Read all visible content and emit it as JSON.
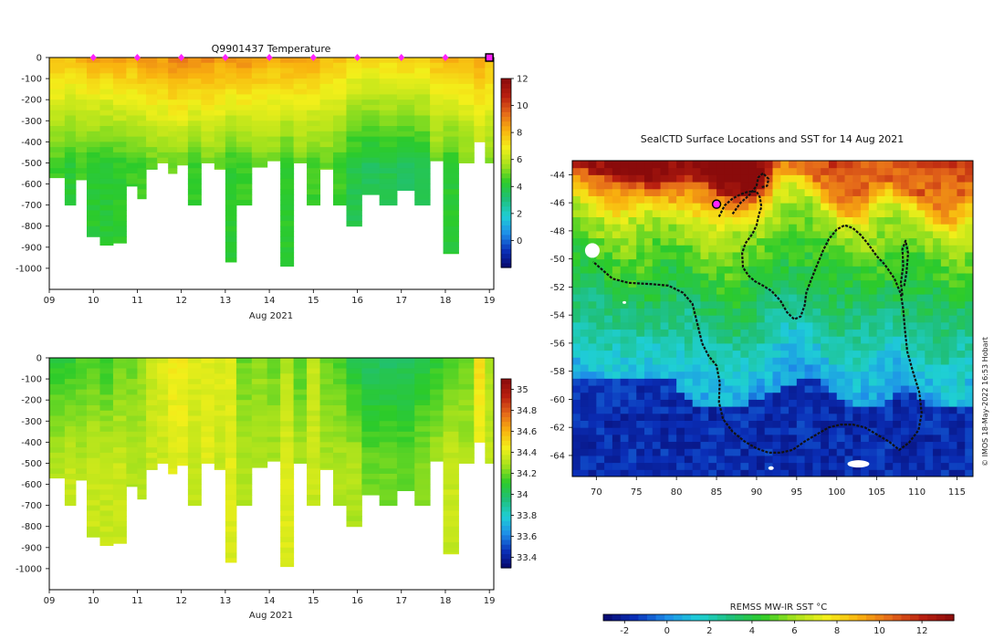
{
  "colors": {
    "colormap": [
      "#08086a",
      "#0a2fb8",
      "#1e8ee8",
      "#1fcfd6",
      "#1fbf7a",
      "#2ccb2a",
      "#a7e21c",
      "#f3ef1a",
      "#f9b20f",
      "#e5691a",
      "#b81f10",
      "#8a0b0b"
    ],
    "track": "#111111",
    "marker": "#ff22ff",
    "land": "#ffffff"
  },
  "chart_data": [
    {
      "id": "temperature",
      "type": "heatmap",
      "title": "Q9901437  Temperature",
      "xlabel": "Aug 2021",
      "ylabel": "",
      "xlim": [
        9,
        19.1
      ],
      "ylim": [
        -1100,
        0
      ],
      "x_ticks": [
        "09",
        "10",
        "11",
        "12",
        "13",
        "14",
        "15",
        "16",
        "17",
        "18",
        "19"
      ],
      "x_tick_values": [
        9,
        10,
        11,
        12,
        13,
        14,
        15,
        16,
        17,
        18,
        19
      ],
      "y_ticks": [
        "0",
        "-100",
        "-200",
        "-300",
        "-400",
        "-500",
        "-600",
        "-700",
        "-800",
        "-900",
        "-1000"
      ],
      "y_tick_values": [
        0,
        -100,
        -200,
        -300,
        -400,
        -500,
        -600,
        -700,
        -800,
        -900,
        -1000
      ],
      "surface_markers": [
        10,
        11,
        12,
        13,
        14,
        15,
        16,
        17,
        18,
        19
      ],
      "colorbar": {
        "min": -2,
        "max": 12,
        "ticks": [
          "0",
          "2",
          "4",
          "6",
          "8",
          "10",
          "12"
        ],
        "tick_values": [
          0,
          2,
          4,
          6,
          8,
          10,
          12
        ]
      },
      "profiles": [
        {
          "t": 9.2,
          "depth": 570,
          "surf": 8.0,
          "deep": 4.5
        },
        {
          "t": 9.5,
          "depth": 700,
          "surf": 7.8,
          "deep": 4.2
        },
        {
          "t": 9.7,
          "depth": 580,
          "surf": 8.0,
          "deep": 4.5
        },
        {
          "t": 10.0,
          "depth": 850,
          "surf": 8.4,
          "deep": 4.2
        },
        {
          "t": 10.3,
          "depth": 890,
          "surf": 8.2,
          "deep": 4.2
        },
        {
          "t": 10.6,
          "depth": 880,
          "surf": 8.5,
          "deep": 4.3
        },
        {
          "t": 10.9,
          "depth": 610,
          "surf": 8.2,
          "deep": 4.5
        },
        {
          "t": 11.1,
          "depth": 670,
          "surf": 8.6,
          "deep": 4.5
        },
        {
          "t": 11.3,
          "depth": 530,
          "surf": 8.7,
          "deep": 4.8
        },
        {
          "t": 11.6,
          "depth": 500,
          "surf": 8.5,
          "deep": 5.0
        },
        {
          "t": 11.8,
          "depth": 550,
          "surf": 9.0,
          "deep": 5.0
        },
        {
          "t": 12.0,
          "depth": 510,
          "surf": 9.0,
          "deep": 5.0
        },
        {
          "t": 12.3,
          "depth": 700,
          "surf": 8.8,
          "deep": 4.5
        },
        {
          "t": 12.6,
          "depth": 500,
          "surf": 8.8,
          "deep": 5.0
        },
        {
          "t": 12.9,
          "depth": 530,
          "surf": 8.5,
          "deep": 5.0
        },
        {
          "t": 13.1,
          "depth": 970,
          "surf": 8.6,
          "deep": 4.3
        },
        {
          "t": 13.4,
          "depth": 700,
          "surf": 8.8,
          "deep": 4.5
        },
        {
          "t": 13.8,
          "depth": 520,
          "surf": 8.4,
          "deep": 5.0
        },
        {
          "t": 14.1,
          "depth": 490,
          "surf": 8.2,
          "deep": 5.0
        },
        {
          "t": 14.4,
          "depth": 990,
          "surf": 8.5,
          "deep": 4.3
        },
        {
          "t": 14.7,
          "depth": 500,
          "surf": 8.3,
          "deep": 5.0
        },
        {
          "t": 15.0,
          "depth": 700,
          "surf": 8.5,
          "deep": 4.5
        },
        {
          "t": 15.3,
          "depth": 530,
          "surf": 7.8,
          "deep": 5.0
        },
        {
          "t": 15.6,
          "depth": 700,
          "surf": 7.8,
          "deep": 4.5
        },
        {
          "t": 15.9,
          "depth": 800,
          "surf": 7.5,
          "deep": 3.8
        },
        {
          "t": 16.3,
          "depth": 650,
          "surf": 7.4,
          "deep": 3.6
        },
        {
          "t": 16.7,
          "depth": 700,
          "surf": 7.5,
          "deep": 3.7
        },
        {
          "t": 17.1,
          "depth": 630,
          "surf": 7.6,
          "deep": 3.6
        },
        {
          "t": 17.5,
          "depth": 700,
          "surf": 7.5,
          "deep": 3.8
        },
        {
          "t": 17.8,
          "depth": 490,
          "surf": 7.9,
          "deep": 5.0
        },
        {
          "t": 18.1,
          "depth": 930,
          "surf": 8.2,
          "deep": 4.2
        },
        {
          "t": 18.5,
          "depth": 500,
          "surf": 8.0,
          "deep": 5.0
        },
        {
          "t": 18.8,
          "depth": 400,
          "surf": 8.4,
          "deep": 5.5
        },
        {
          "t": 19.0,
          "depth": 500,
          "surf": 8.0,
          "deep": 5.2
        }
      ]
    },
    {
      "id": "salinity",
      "type": "heatmap",
      "title": "",
      "xlabel": "Aug 2021",
      "ylabel": "",
      "xlim": [
        9,
        19.1
      ],
      "ylim": [
        -1100,
        0
      ],
      "x_ticks": [
        "09",
        "10",
        "11",
        "12",
        "13",
        "14",
        "15",
        "16",
        "17",
        "18",
        "19"
      ],
      "x_tick_values": [
        9,
        10,
        11,
        12,
        13,
        14,
        15,
        16,
        17,
        18,
        19
      ],
      "y_ticks": [
        "0",
        "-100",
        "-200",
        "-300",
        "-400",
        "-500",
        "-600",
        "-700",
        "-800",
        "-900",
        "-1000"
      ],
      "y_tick_values": [
        0,
        -100,
        -200,
        -300,
        -400,
        -500,
        -600,
        -700,
        -800,
        -900,
        -1000
      ],
      "colorbar": {
        "min": 33.3,
        "max": 35.1,
        "ticks": [
          "33.4",
          "33.6",
          "33.8",
          "34",
          "34.2",
          "34.4",
          "34.6",
          "34.8",
          "35"
        ],
        "tick_values": [
          33.4,
          33.6,
          33.8,
          34.0,
          34.2,
          34.4,
          34.6,
          34.8,
          35.0
        ]
      },
      "profiles": [
        {
          "t": 9.2,
          "depth": 570,
          "surf": 34.1,
          "deep": 34.3
        },
        {
          "t": 9.5,
          "depth": 700,
          "surf": 34.1,
          "deep": 34.35
        },
        {
          "t": 9.7,
          "depth": 580,
          "surf": 34.15,
          "deep": 34.3
        },
        {
          "t": 10.0,
          "depth": 850,
          "surf": 34.15,
          "deep": 34.35
        },
        {
          "t": 10.3,
          "depth": 890,
          "surf": 34.1,
          "deep": 34.35
        },
        {
          "t": 10.6,
          "depth": 880,
          "surf": 34.2,
          "deep": 34.35
        },
        {
          "t": 10.9,
          "depth": 610,
          "surf": 34.2,
          "deep": 34.3
        },
        {
          "t": 11.1,
          "depth": 670,
          "surf": 34.25,
          "deep": 34.3
        },
        {
          "t": 11.3,
          "depth": 530,
          "surf": 34.35,
          "deep": 34.35
        },
        {
          "t": 11.6,
          "depth": 500,
          "surf": 34.4,
          "deep": 34.35
        },
        {
          "t": 11.8,
          "depth": 550,
          "surf": 34.45,
          "deep": 34.4
        },
        {
          "t": 12.0,
          "depth": 510,
          "surf": 34.45,
          "deep": 34.4
        },
        {
          "t": 12.3,
          "depth": 700,
          "surf": 34.4,
          "deep": 34.35
        },
        {
          "t": 12.6,
          "depth": 500,
          "surf": 34.4,
          "deep": 34.4
        },
        {
          "t": 12.9,
          "depth": 530,
          "surf": 34.4,
          "deep": 34.35
        },
        {
          "t": 13.1,
          "depth": 970,
          "surf": 34.4,
          "deep": 34.4
        },
        {
          "t": 13.4,
          "depth": 700,
          "surf": 34.2,
          "deep": 34.3
        },
        {
          "t": 13.8,
          "depth": 520,
          "surf": 34.25,
          "deep": 34.3
        },
        {
          "t": 14.1,
          "depth": 490,
          "surf": 34.2,
          "deep": 34.3
        },
        {
          "t": 14.4,
          "depth": 990,
          "surf": 34.3,
          "deep": 34.4
        },
        {
          "t": 14.7,
          "depth": 500,
          "surf": 34.15,
          "deep": 34.3
        },
        {
          "t": 15.0,
          "depth": 700,
          "surf": 34.35,
          "deep": 34.35
        },
        {
          "t": 15.3,
          "depth": 530,
          "surf": 34.2,
          "deep": 34.3
        },
        {
          "t": 15.6,
          "depth": 700,
          "surf": 34.15,
          "deep": 34.3
        },
        {
          "t": 15.9,
          "depth": 800,
          "surf": 34.05,
          "deep": 34.3
        },
        {
          "t": 16.3,
          "depth": 650,
          "surf": 34.0,
          "deep": 34.2
        },
        {
          "t": 16.7,
          "depth": 700,
          "surf": 34.0,
          "deep": 34.2
        },
        {
          "t": 17.1,
          "depth": 630,
          "surf": 34.0,
          "deep": 34.2
        },
        {
          "t": 17.5,
          "depth": 700,
          "surf": 34.05,
          "deep": 34.25
        },
        {
          "t": 17.8,
          "depth": 490,
          "surf": 34.1,
          "deep": 34.3
        },
        {
          "t": 18.1,
          "depth": 930,
          "surf": 34.15,
          "deep": 34.35
        },
        {
          "t": 18.5,
          "depth": 500,
          "surf": 34.2,
          "deep": 34.3
        },
        {
          "t": 18.8,
          "depth": 400,
          "surf": 34.5,
          "deep": 34.4
        },
        {
          "t": 19.0,
          "depth": 500,
          "surf": 34.3,
          "deep": 34.35
        }
      ]
    },
    {
      "id": "sst_map",
      "type": "heatmap",
      "title": "SealCTD Surface Locations and SST for 14 Aug 2021",
      "xlabel": "",
      "ylabel": "",
      "xlim": [
        67,
        117
      ],
      "ylim": [
        -65.5,
        -43
      ],
      "x_ticks": [
        "70",
        "75",
        "80",
        "85",
        "90",
        "95",
        "100",
        "105",
        "110",
        "115"
      ],
      "x_tick_values": [
        70,
        75,
        80,
        85,
        90,
        95,
        100,
        105,
        110,
        115
      ],
      "y_ticks": [
        "-44",
        "-46",
        "-48",
        "-50",
        "-52",
        "-54",
        "-56",
        "-58",
        "-60",
        "-62",
        "-64"
      ],
      "y_tick_values": [
        -44,
        -46,
        -48,
        -50,
        -52,
        -54,
        -56,
        -58,
        -60,
        -62,
        -64
      ],
      "credit": "© IMOS 18-May-2022 16:53 Hobart",
      "colorbar": {
        "label": "REMSS MW-IR SST °C",
        "min": -3,
        "max": 13.5,
        "ticks": [
          "-2",
          "0",
          "2",
          "4",
          "6",
          "8",
          "10",
          "12"
        ],
        "tick_values": [
          -2,
          0,
          2,
          4,
          6,
          8,
          10,
          12
        ]
      },
      "sst_model": "SST(lon,lat) decreasing poleward; warm north of -46, cold (< -1) south of -60",
      "current_location": {
        "lon": 85.0,
        "lat": -46.1
      },
      "tracks": [
        [
          [
            85.3,
            -47.0
          ],
          [
            86.0,
            -46.2
          ],
          [
            87.0,
            -45.7
          ],
          [
            88.0,
            -45.4
          ],
          [
            89.0,
            -45.2
          ],
          [
            90.0,
            -45.2
          ],
          [
            90.4,
            -45.6
          ],
          [
            90.6,
            -46.3
          ],
          [
            90.3,
            -46.8
          ],
          [
            90.0,
            -47.6
          ],
          [
            89.5,
            -48.2
          ],
          [
            88.6,
            -48.9
          ],
          [
            88.2,
            -49.6
          ],
          [
            88.3,
            -50.6
          ],
          [
            89.0,
            -51.2
          ],
          [
            89.8,
            -51.6
          ],
          [
            90.8,
            -51.9
          ],
          [
            91.9,
            -52.3
          ],
          [
            93.0,
            -53.0
          ],
          [
            93.8,
            -53.8
          ],
          [
            94.7,
            -54.3
          ],
          [
            95.5,
            -54.1
          ],
          [
            96.0,
            -53.3
          ],
          [
            96.2,
            -52.4
          ],
          [
            96.8,
            -51.5
          ],
          [
            97.5,
            -50.5
          ],
          [
            98.3,
            -49.4
          ],
          [
            99.0,
            -48.6
          ],
          [
            100.0,
            -47.9
          ],
          [
            101.0,
            -47.6
          ],
          [
            102.0,
            -47.8
          ],
          [
            103.0,
            -48.3
          ],
          [
            104.0,
            -49.0
          ],
          [
            105.0,
            -49.8
          ],
          [
            106.0,
            -50.4
          ],
          [
            107.2,
            -51.4
          ],
          [
            108.0,
            -52.5
          ],
          [
            108.3,
            -53.6
          ],
          [
            108.5,
            -55.0
          ],
          [
            108.8,
            -56.6
          ],
          [
            109.5,
            -58.0
          ],
          [
            110.3,
            -59.5
          ],
          [
            110.6,
            -61.0
          ],
          [
            110.2,
            -62.2
          ],
          [
            109.0,
            -63.1
          ],
          [
            107.8,
            -63.6
          ],
          [
            106.5,
            -63.0
          ],
          [
            105.0,
            -62.5
          ],
          [
            103.5,
            -62.0
          ],
          [
            102.0,
            -61.8
          ],
          [
            100.5,
            -61.8
          ],
          [
            99.0,
            -62.0
          ],
          [
            97.5,
            -62.5
          ],
          [
            96.0,
            -63.0
          ],
          [
            94.5,
            -63.6
          ],
          [
            93.0,
            -63.8
          ],
          [
            91.5,
            -63.8
          ],
          [
            90.0,
            -63.5
          ],
          [
            88.5,
            -63.0
          ],
          [
            87.0,
            -62.3
          ],
          [
            85.8,
            -61.4
          ],
          [
            85.3,
            -60.2
          ],
          [
            85.4,
            -58.8
          ],
          [
            85.0,
            -57.6
          ],
          [
            84.0,
            -56.9
          ],
          [
            83.2,
            -56.0
          ],
          [
            82.6,
            -54.6
          ],
          [
            82.0,
            -53.2
          ],
          [
            80.8,
            -52.4
          ],
          [
            79.0,
            -51.9
          ],
          [
            77.0,
            -51.8
          ],
          [
            74.0,
            -51.7
          ],
          [
            72.0,
            -51.4
          ],
          [
            70.6,
            -50.7
          ],
          [
            69.6,
            -50.2
          ]
        ],
        [
          [
            87.0,
            -46.8
          ],
          [
            88.0,
            -46.0
          ],
          [
            89.0,
            -45.5
          ],
          [
            90.0,
            -44.8
          ],
          [
            90.2,
            -44.2
          ],
          [
            90.8,
            -43.9
          ],
          [
            91.5,
            -44.3
          ],
          [
            91.3,
            -44.8
          ],
          [
            90.5,
            -44.9
          ]
        ],
        [
          [
            108.2,
            -52.6
          ],
          [
            108.0,
            -51.7
          ],
          [
            108.3,
            -50.5
          ],
          [
            108.2,
            -49.3
          ],
          [
            108.6,
            -48.7
          ],
          [
            108.9,
            -49.6
          ],
          [
            108.7,
            -51.0
          ],
          [
            108.4,
            -52.0
          ]
        ]
      ]
    }
  ]
}
